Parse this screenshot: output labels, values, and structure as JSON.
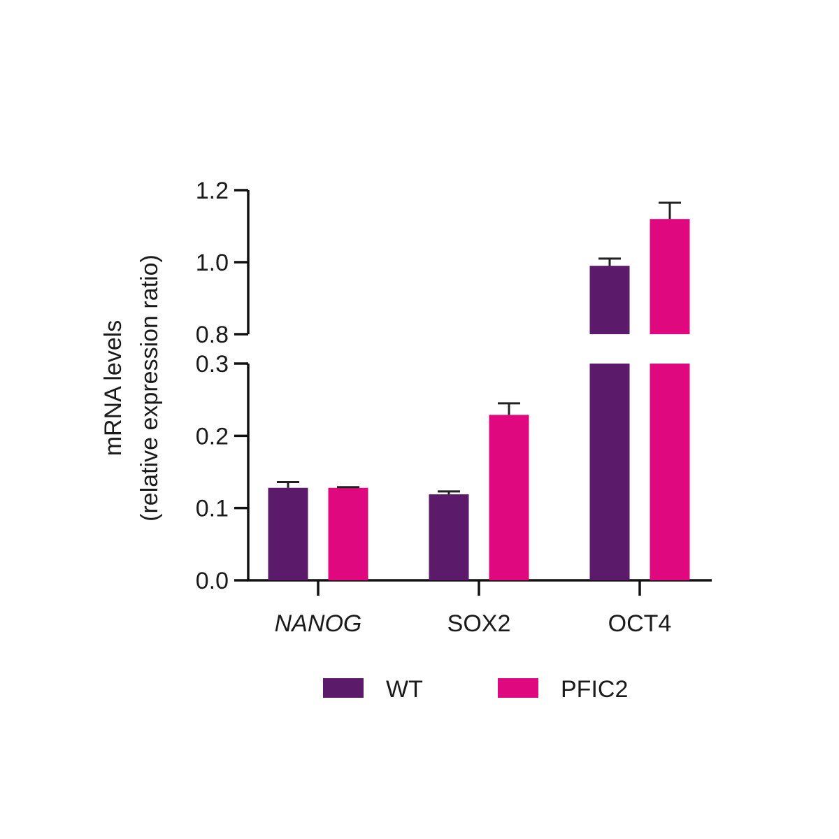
{
  "chart_data": {
    "type": "bar",
    "categories": [
      "NANOG",
      "SOX2",
      "OCT4"
    ],
    "italic_categories": [
      "NANOG"
    ],
    "series": [
      {
        "name": "WT",
        "color": "#5c1a6b",
        "values": [
          0.128,
          0.119,
          0.99
        ],
        "errors": [
          0.008,
          0.004,
          0.02
        ]
      },
      {
        "name": "PFIC2",
        "color": "#e0087f",
        "values": [
          0.128,
          0.229,
          1.12
        ],
        "errors": [
          0.001,
          0.016,
          0.045
        ]
      }
    ],
    "ylabel_line1": "mRNA levels",
    "ylabel_line2": "(relative expression ratio)",
    "y_broken_axis": true,
    "y_lower_range": [
      0,
      0.3
    ],
    "y_upper_range": [
      0.8,
      1.2
    ],
    "y_lower_ticks": [
      "0.0",
      "0.1",
      "0.2",
      "0.3"
    ],
    "y_upper_ticks": [
      "0.8",
      "1.0",
      "1.2"
    ],
    "legend_position": "bottom",
    "grid": false
  }
}
